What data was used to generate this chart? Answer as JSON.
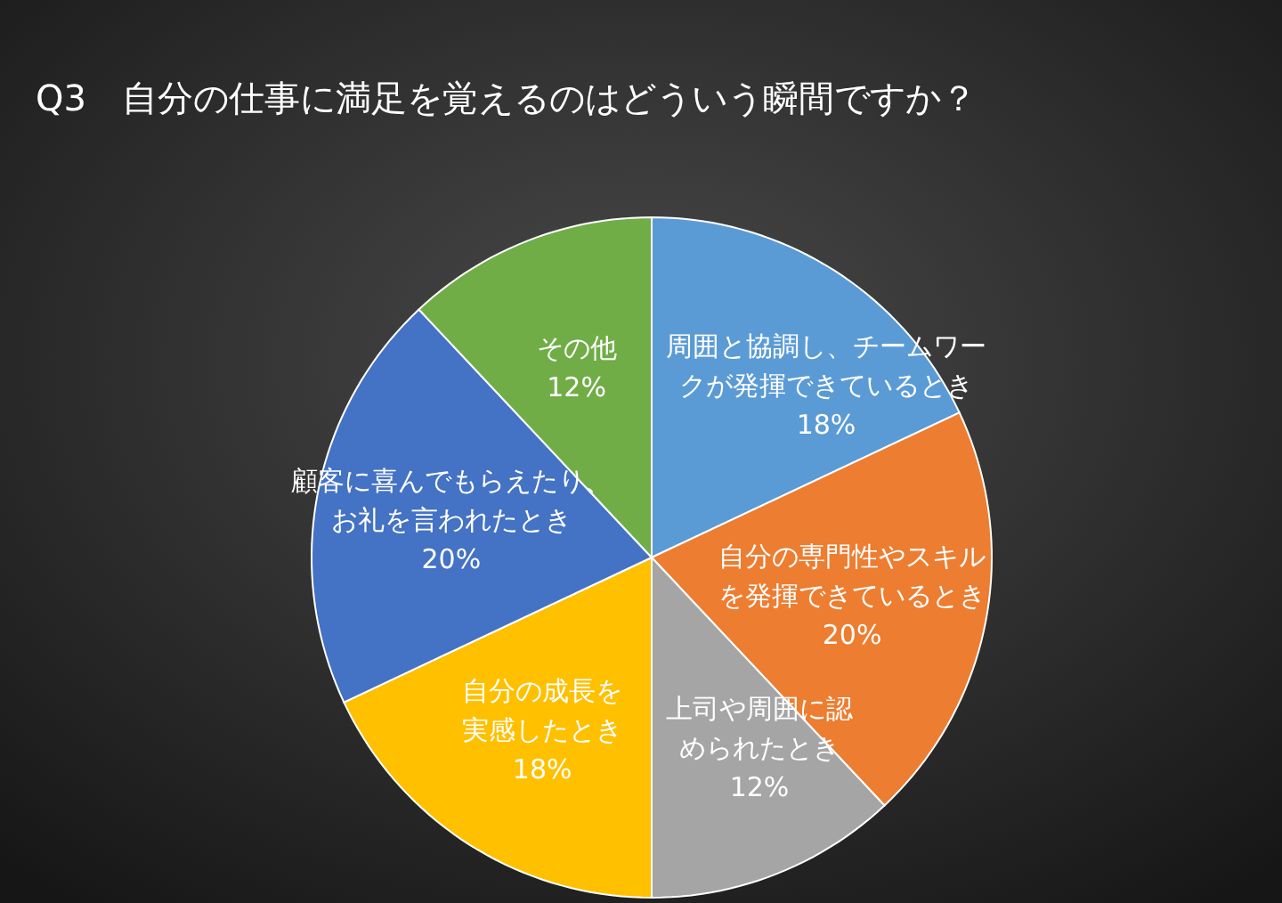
{
  "chart_data": {
    "type": "pie",
    "title": "Q3　自分の仕事に満足を覚えるのはどういう瞬間ですか？",
    "categories": [
      "周囲と協調し、チームワークが発揮できているとき",
      "自分の専門性やスキルを発揮できているとき",
      "上司や周囲に認められたとき",
      "自分の成長を実感したとき",
      "顧客に喜んでもらえたり、お礼を言われたとき",
      "その他"
    ],
    "values": [
      18,
      20,
      12,
      18,
      20,
      12
    ],
    "value_labels": [
      "18%",
      "20%",
      "12%",
      "18%",
      "20%",
      "12%"
    ],
    "colors": [
      "#5b9bd5",
      "#ed7d31",
      "#a5a5a5",
      "#ffc000",
      "#4472c4",
      "#70ad47"
    ]
  }
}
